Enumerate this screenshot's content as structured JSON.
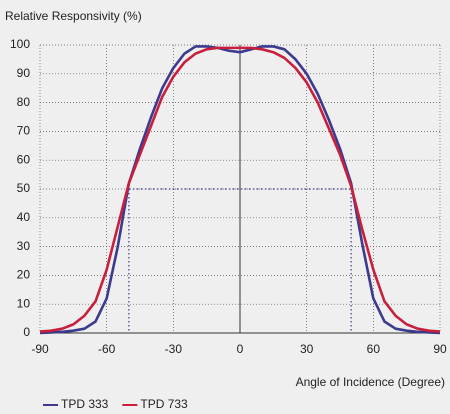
{
  "chart_data": {
    "type": "line",
    "title": "Relative Responsivity (%)",
    "x_label": "Angle of Incidence (Degree)",
    "x": [
      -90,
      -85,
      -80,
      -75,
      -70,
      -65,
      -60,
      -55,
      -50,
      -45,
      -40,
      -35,
      -30,
      -25,
      -20,
      -15,
      -10,
      -5,
      0,
      5,
      10,
      15,
      20,
      25,
      30,
      35,
      40,
      45,
      50,
      55,
      60,
      65,
      70,
      75,
      80,
      85,
      90
    ],
    "series": [
      {
        "name": "TPD 333",
        "color": "#3b3a8f",
        "values": [
          0,
          0.2,
          0.4,
          0.8,
          1.5,
          4,
          12,
          30,
          52,
          64,
          75,
          85,
          92,
          97,
          99.5,
          99.5,
          99,
          98,
          97.5,
          98.5,
          99.5,
          99.5,
          98.5,
          95,
          90,
          83,
          74,
          64,
          52,
          31,
          12,
          4,
          1.5,
          0.8,
          0.4,
          0.2,
          0
        ]
      },
      {
        "name": "TPD 733",
        "color": "#c8203c",
        "values": [
          0.5,
          0.8,
          1.5,
          3,
          6,
          11,
          22,
          37,
          52,
          62,
          72,
          82,
          89,
          94,
          97,
          98.5,
          99,
          99,
          99,
          99,
          98.5,
          97.5,
          95.5,
          92,
          87,
          80,
          71,
          62,
          51,
          36,
          22,
          11,
          6,
          3,
          1.5,
          0.8,
          0.5
        ]
      }
    ],
    "reference_lines": {
      "x": [
        -50,
        50
      ],
      "y": 50,
      "color": "#3b3a8f"
    },
    "xlim": [
      -90,
      90
    ],
    "xticks": [
      -90,
      -60,
      -30,
      0,
      30,
      60,
      90
    ],
    "ylim": [
      0,
      100
    ],
    "yticks": [
      0,
      10,
      20,
      30,
      40,
      50,
      60,
      70,
      80,
      90,
      100
    ],
    "grid": true
  }
}
